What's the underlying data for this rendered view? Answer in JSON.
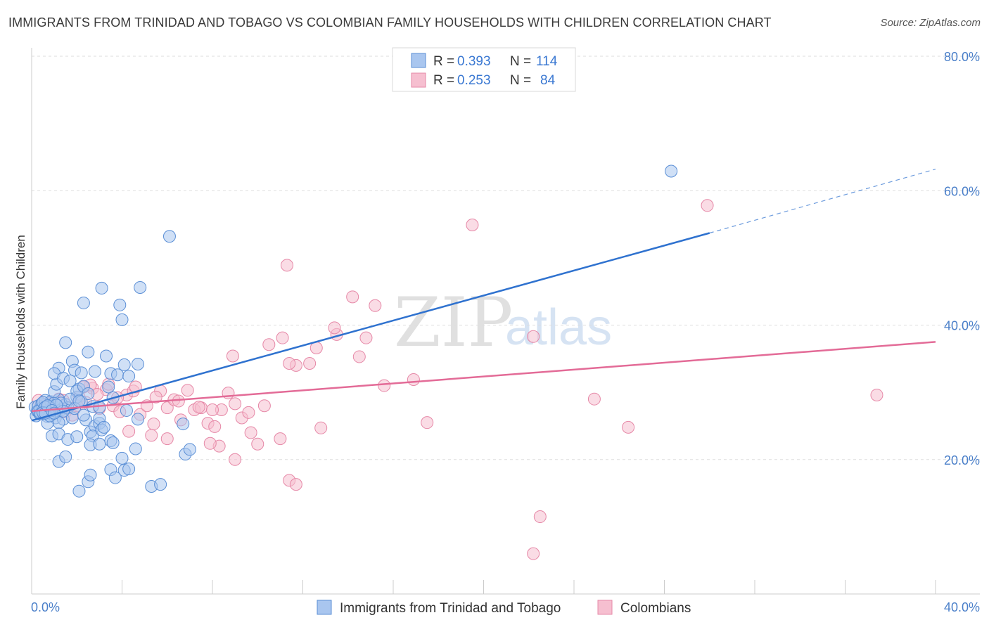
{
  "header": {
    "title": "IMMIGRANTS FROM TRINIDAD AND TOBAGO VS COLOMBIAN FAMILY HOUSEHOLDS WITH CHILDREN CORRELATION CHART",
    "source": "Source: ZipAtlas.com"
  },
  "watermark": {
    "zip": "ZIP",
    "atlas": "atlas"
  },
  "legend": {
    "rows": [
      {
        "r_label": "R =",
        "r_value": "0.393",
        "n_label": "N =",
        "n_value": "114"
      },
      {
        "r_label": "R =",
        "r_value": "0.253",
        "n_label": "N =",
        "n_value": "84"
      }
    ]
  },
  "colors": {
    "blue_fill": "#a9c6ef",
    "blue_stroke": "#5b8fd6",
    "blue_line": "#2f72cf",
    "pink_fill": "#f6bfd0",
    "pink_stroke": "#e688a7",
    "pink_line": "#e36b97",
    "grid": "#dddddd",
    "axis_text": "#4a7fc9"
  },
  "chart_data": {
    "type": "scatter",
    "title": "IMMIGRANTS FROM TRINIDAD AND TOBAGO VS COLOMBIAN FAMILY HOUSEHOLDS WITH CHILDREN CORRELATION CHART",
    "xlabel": "",
    "ylabel": "Family Households with Children",
    "xlim": [
      0,
      40
    ],
    "ylim": [
      0,
      80
    ],
    "x_tick_labels": [
      "0.0%",
      "40.0%"
    ],
    "y_ticks": [
      20,
      40,
      60,
      80
    ],
    "y_tick_labels": [
      "20.0%",
      "40.0%",
      "60.0%",
      "80.0%"
    ],
    "grid": true,
    "legend_position": "top-center",
    "series": [
      {
        "name": "Immigrants from Trinidad and Tobago",
        "color": "#a9c6ef",
        "trend": {
          "x": [
            0,
            30
          ],
          "y": [
            25.8,
            53.7
          ],
          "dashed_extension_to": [
            40,
            63.2
          ]
        },
        "points": [
          [
            0.15,
            27.8
          ],
          [
            0.2,
            26.5
          ],
          [
            0.25,
            27.2
          ],
          [
            0.3,
            28.0
          ],
          [
            0.35,
            26.8
          ],
          [
            0.4,
            27.5
          ],
          [
            0.45,
            28.3
          ],
          [
            0.5,
            26.9
          ],
          [
            0.55,
            27.6
          ],
          [
            0.6,
            28.8
          ],
          [
            0.65,
            27.0
          ],
          [
            0.7,
            26.4
          ],
          [
            0.75,
            28.1
          ],
          [
            0.8,
            27.3
          ],
          [
            0.85,
            28.6
          ],
          [
            0.9,
            26.7
          ],
          [
            0.95,
            27.9
          ],
          [
            1.0,
            28.4
          ],
          [
            1.05,
            26.2
          ],
          [
            1.1,
            27.1
          ],
          [
            1.2,
            28.9
          ],
          [
            1.3,
            27.4
          ],
          [
            1.4,
            26.0
          ],
          [
            1.5,
            28.2
          ],
          [
            1.6,
            27.7
          ],
          [
            1.2,
            25.5
          ],
          [
            0.9,
            23.5
          ],
          [
            0.7,
            25.4
          ],
          [
            1.0,
            30.1
          ],
          [
            1.1,
            31.2
          ],
          [
            1.2,
            33.6
          ],
          [
            1.0,
            32.8
          ],
          [
            1.4,
            32.1
          ],
          [
            1.8,
            34.6
          ],
          [
            1.5,
            37.4
          ],
          [
            1.7,
            31.7
          ],
          [
            1.9,
            33.3
          ],
          [
            2.0,
            29.3
          ],
          [
            2.1,
            30.5
          ],
          [
            2.2,
            28.6
          ],
          [
            1.8,
            26.2
          ],
          [
            2.0,
            30.2
          ],
          [
            2.3,
            30.9
          ],
          [
            2.5,
            29.8
          ],
          [
            2.4,
            25.9
          ],
          [
            2.6,
            24.1
          ],
          [
            2.8,
            25.0
          ],
          [
            2.7,
            23.5
          ],
          [
            3.0,
            25.4
          ],
          [
            3.1,
            24.4
          ],
          [
            2.2,
            32.9
          ],
          [
            2.5,
            36.0
          ],
          [
            2.8,
            33.1
          ],
          [
            3.3,
            35.4
          ],
          [
            3.5,
            32.8
          ],
          [
            3.8,
            32.6
          ],
          [
            4.1,
            34.1
          ],
          [
            4.3,
            32.4
          ],
          [
            4.2,
            27.3
          ],
          [
            4.7,
            34.2
          ],
          [
            3.1,
            45.5
          ],
          [
            3.9,
            43.0
          ],
          [
            4.0,
            40.8
          ],
          [
            4.8,
            45.6
          ],
          [
            2.3,
            43.3
          ],
          [
            6.1,
            53.2
          ],
          [
            1.2,
            23.8
          ],
          [
            1.6,
            23.0
          ],
          [
            2.0,
            23.4
          ],
          [
            2.6,
            22.2
          ],
          [
            3.0,
            22.3
          ],
          [
            3.5,
            22.8
          ],
          [
            3.6,
            22.5
          ],
          [
            4.6,
            21.6
          ],
          [
            4.0,
            20.2
          ],
          [
            1.2,
            19.7
          ],
          [
            1.5,
            20.4
          ],
          [
            2.5,
            16.7
          ],
          [
            2.6,
            17.7
          ],
          [
            3.5,
            18.5
          ],
          [
            3.7,
            17.3
          ],
          [
            4.1,
            18.4
          ],
          [
            4.3,
            18.6
          ],
          [
            5.3,
            16.0
          ],
          [
            5.7,
            16.3
          ],
          [
            2.1,
            15.3
          ],
          [
            3.0,
            26.1
          ],
          [
            3.2,
            24.8
          ],
          [
            4.7,
            26.0
          ],
          [
            6.7,
            25.3
          ],
          [
            6.8,
            20.8
          ],
          [
            7.0,
            21.5
          ],
          [
            0.3,
            27.2
          ],
          [
            0.5,
            28.5
          ],
          [
            0.6,
            27.8
          ],
          [
            0.8,
            26.5
          ],
          [
            1.3,
            28.4
          ],
          [
            1.4,
            27.2
          ],
          [
            1.7,
            29.0
          ],
          [
            1.9,
            27.6
          ],
          [
            2.1,
            28.7
          ],
          [
            2.3,
            26.6
          ],
          [
            2.7,
            27.9
          ],
          [
            3.0,
            27.8
          ],
          [
            3.4,
            30.8
          ],
          [
            3.6,
            29.2
          ],
          [
            0.4,
            26.8
          ],
          [
            0.5,
            27.0
          ],
          [
            0.6,
            26.9
          ],
          [
            0.7,
            28.0
          ],
          [
            28.3,
            62.9
          ],
          [
            1.1,
            28.1
          ],
          [
            0.9,
            27.3
          ],
          [
            1.0,
            26.9
          ]
        ]
      },
      {
        "name": "Colombians",
        "color": "#f6bfd0",
        "trend": {
          "x": [
            0,
            40
          ],
          "y": [
            27.2,
            37.5
          ]
        },
        "points": [
          [
            0.3,
            28.8
          ],
          [
            0.6,
            28.2
          ],
          [
            0.9,
            27.6
          ],
          [
            1.2,
            29.0
          ],
          [
            1.5,
            27.1
          ],
          [
            1.8,
            26.6
          ],
          [
            2.1,
            29.3
          ],
          [
            2.4,
            28.5
          ],
          [
            2.7,
            30.6
          ],
          [
            3.0,
            27.6
          ],
          [
            3.3,
            30.4
          ],
          [
            3.6,
            28.0
          ],
          [
            3.9,
            27.1
          ],
          [
            4.2,
            29.6
          ],
          [
            4.5,
            30.2
          ],
          [
            4.8,
            26.7
          ],
          [
            5.1,
            28.0
          ],
          [
            5.4,
            25.3
          ],
          [
            5.7,
            30.2
          ],
          [
            6.0,
            27.7
          ],
          [
            6.3,
            28.9
          ],
          [
            6.6,
            25.9
          ],
          [
            6.9,
            30.3
          ],
          [
            7.2,
            27.4
          ],
          [
            7.5,
            27.7
          ],
          [
            7.8,
            25.4
          ],
          [
            8.1,
            24.9
          ],
          [
            8.4,
            27.4
          ],
          [
            8.7,
            29.9
          ],
          [
            9.0,
            28.3
          ],
          [
            9.3,
            26.2
          ],
          [
            9.6,
            27.0
          ],
          [
            4.6,
            30.8
          ],
          [
            5.3,
            23.6
          ],
          [
            6.0,
            23.1
          ],
          [
            8.3,
            22.0
          ],
          [
            7.9,
            22.4
          ],
          [
            9.0,
            20.0
          ],
          [
            10.0,
            22.3
          ],
          [
            11.0,
            23.1
          ],
          [
            9.7,
            24.0
          ],
          [
            8.9,
            35.4
          ],
          [
            10.5,
            37.1
          ],
          [
            11.1,
            38.1
          ],
          [
            11.7,
            34.0
          ],
          [
            12.6,
            36.6
          ],
          [
            13.5,
            38.6
          ],
          [
            14.8,
            38.1
          ],
          [
            15.2,
            42.9
          ],
          [
            14.2,
            44.2
          ],
          [
            11.4,
            34.3
          ],
          [
            12.3,
            34.3
          ],
          [
            11.3,
            48.9
          ],
          [
            11.4,
            16.9
          ],
          [
            11.7,
            16.3
          ],
          [
            16.9,
            31.9
          ],
          [
            15.6,
            31.0
          ],
          [
            17.5,
            25.5
          ],
          [
            14.5,
            35.3
          ],
          [
            13.4,
            39.6
          ],
          [
            19.5,
            54.9
          ],
          [
            29.9,
            57.8
          ],
          [
            24.9,
            29.0
          ],
          [
            37.4,
            29.6
          ],
          [
            26.4,
            24.8
          ],
          [
            22.2,
            38.3
          ],
          [
            2.6,
            31.1
          ],
          [
            3.4,
            31.2
          ],
          [
            2.3,
            30.8
          ],
          [
            5.5,
            29.3
          ],
          [
            6.5,
            28.7
          ],
          [
            7.4,
            27.8
          ],
          [
            8.0,
            27.4
          ],
          [
            0.8,
            28.4
          ],
          [
            1.1,
            27.2
          ],
          [
            1.4,
            28.8
          ],
          [
            2.0,
            28.0
          ],
          [
            2.9,
            29.7
          ],
          [
            3.8,
            29.2
          ],
          [
            4.3,
            24.2
          ],
          [
            22.5,
            11.5
          ],
          [
            22.2,
            6.0
          ],
          [
            10.3,
            28.0
          ],
          [
            12.8,
            24.7
          ]
        ]
      }
    ]
  },
  "bottom_legend": {
    "items": [
      {
        "label": "Immigrants from Trinidad and Tobago"
      },
      {
        "label": "Colombians"
      }
    ]
  }
}
